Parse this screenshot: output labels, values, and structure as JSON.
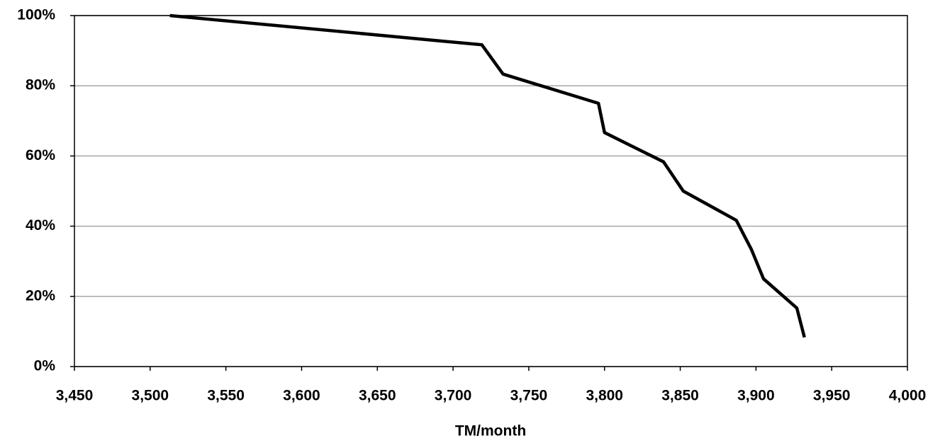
{
  "chart_data": {
    "type": "line",
    "x_label": "TM/month",
    "x": [
      3513,
      3719,
      3733,
      3796,
      3800,
      3839,
      3852,
      3887,
      3897,
      3905,
      3927,
      3932
    ],
    "values": [
      100,
      91.67,
      83.33,
      75,
      66.67,
      58.33,
      50,
      41.67,
      33.33,
      25,
      16.67,
      8.33
    ],
    "color": "#000000",
    "xlim": [
      3450,
      4000
    ],
    "xticks": [
      {
        "value": 3450,
        "label": "3,450"
      },
      {
        "value": 3500,
        "label": "3,500"
      },
      {
        "value": 3550,
        "label": "3,550"
      },
      {
        "value": 3600,
        "label": "3,600"
      },
      {
        "value": 3650,
        "label": "3,650"
      },
      {
        "value": 3700,
        "label": "3,700"
      },
      {
        "value": 3750,
        "label": "3,750"
      },
      {
        "value": 3800,
        "label": "3,800"
      },
      {
        "value": 3850,
        "label": "3,850"
      },
      {
        "value": 3900,
        "label": "3,900"
      },
      {
        "value": 3950,
        "label": "3,950"
      },
      {
        "value": 4000,
        "label": "4,000"
      }
    ],
    "ylim": [
      0,
      100
    ],
    "yticks": [
      {
        "value": 0,
        "label": "0%"
      },
      {
        "value": 20,
        "label": "20%"
      },
      {
        "value": 40,
        "label": "40%"
      },
      {
        "value": 60,
        "label": "60%"
      },
      {
        "value": 80,
        "label": "80%"
      },
      {
        "value": 100,
        "label": "100%"
      }
    ],
    "grid": true
  }
}
